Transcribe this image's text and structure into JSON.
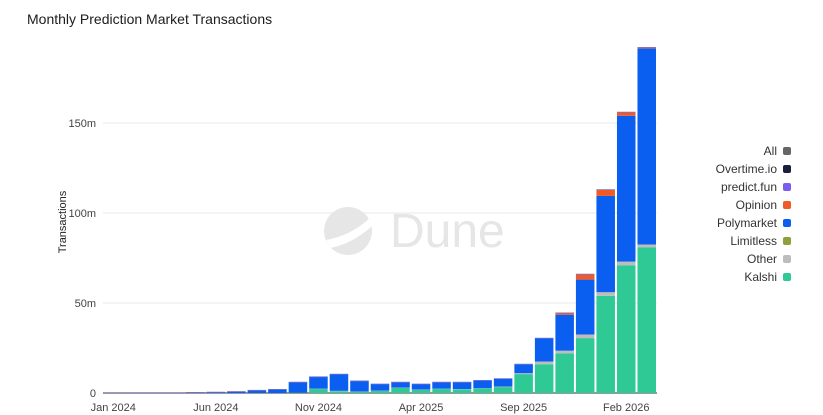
{
  "chart_data": {
    "type": "bar",
    "stacked": true,
    "title": "Monthly Prediction Market Transactions",
    "ylabel": "Transactions",
    "xlabel": "",
    "ylim": [
      0,
      195000000
    ],
    "yticks": [
      0,
      50000000,
      100000000,
      150000000
    ],
    "ytick_labels": [
      "0",
      "50m",
      "100m",
      "150m"
    ],
    "xtick_labels": [
      "Jan 2024",
      "Jun 2024",
      "Nov 2024",
      "Apr 2025",
      "Sep 2025",
      "Feb 2026"
    ],
    "xtick_every": 5,
    "grid": true,
    "legend_position": "right",
    "watermark": "Dune",
    "categories": [
      "Jan 2024",
      "Feb 2024",
      "Mar 2024",
      "Apr 2024",
      "May 2024",
      "Jun 2024",
      "Jul 2024",
      "Aug 2024",
      "Sep 2024",
      "Oct 2024",
      "Nov 2024",
      "Dec 2024",
      "Jan 2025",
      "Feb 2025",
      "Mar 2025",
      "Apr 2025",
      "May 2025",
      "Jun 2025",
      "Jul 2025",
      "Aug 2025",
      "Sep 2025",
      "Oct 2025",
      "Nov 2025",
      "Dec 2025",
      "Jan 2026",
      "Feb 2026",
      "Mar 2026"
    ],
    "legend": [
      {
        "name": "All",
        "color": "#666666"
      },
      {
        "name": "Overtime.io",
        "color": "#1a1f3d"
      },
      {
        "name": "predict.fun",
        "color": "#7b5cf0"
      },
      {
        "name": "Opinion",
        "color": "#f05a28"
      },
      {
        "name": "Polymarket",
        "color": "#0a5ff0"
      },
      {
        "name": "Limitless",
        "color": "#8da03b"
      },
      {
        "name": "Other",
        "color": "#bdbdbd"
      },
      {
        "name": "Kalshi",
        "color": "#2ec994"
      }
    ],
    "series": [
      {
        "name": "Kalshi",
        "color": "#2ec994",
        "values": [
          0,
          0,
          0,
          0,
          0,
          0,
          0,
          0,
          0,
          0.2,
          2.2,
          1,
          0.6,
          1.1,
          2.8,
          1.7,
          2.2,
          2,
          2.5,
          3.3,
          10.5,
          16,
          22,
          30.5,
          54,
          71,
          81
        ]
      },
      {
        "name": "Other",
        "color": "#bdbdbd",
        "values": [
          0,
          0,
          0,
          0,
          0,
          0,
          0,
          0,
          0,
          0,
          0.2,
          0.2,
          0.2,
          0.2,
          0.2,
          0.2,
          0.2,
          0.2,
          0.2,
          0.3,
          0.5,
          1.5,
          1.5,
          2,
          2,
          2,
          1.5
        ]
      },
      {
        "name": "Polymarket",
        "color": "#0a5ff0",
        "values": [
          0.2,
          0.2,
          0.2,
          0.2,
          0.3,
          0.5,
          0.8,
          1.5,
          2,
          5.8,
          6.6,
          9.3,
          5.9,
          3.7,
          3,
          3.1,
          3.6,
          3.8,
          4.3,
          4.4,
          5,
          13,
          20,
          30.5,
          53.5,
          81,
          109
        ]
      },
      {
        "name": "Opinion",
        "color": "#f05a28",
        "values": [
          0,
          0,
          0,
          0,
          0,
          0,
          0,
          0,
          0,
          0,
          0,
          0,
          0,
          0,
          0,
          0,
          0,
          0,
          0,
          0,
          0,
          0,
          1,
          3,
          3.5,
          2,
          0.5
        ]
      }
    ],
    "units": "millions"
  }
}
